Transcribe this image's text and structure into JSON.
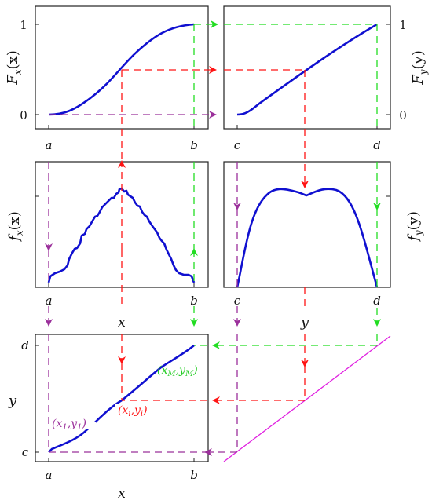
{
  "colors": {
    "curve": "#1010d0",
    "purple": "#9b309b",
    "red": "#ff1414",
    "green": "#22dd22",
    "magenta": "#e020e0",
    "frame": "#222222"
  },
  "panels": {
    "Fx": {
      "ylabel": "F_x(x)",
      "ylabel_main": "F",
      "ylabel_sub": "x",
      "ylabel_arg": "(x)",
      "yticks": [
        "1",
        "0"
      ],
      "xticks": [
        "a",
        "b"
      ]
    },
    "Fy": {
      "ylabel_main": "F",
      "ylabel_sub": "y",
      "ylabel_arg": "(y)",
      "yticks": [
        "1",
        "0"
      ],
      "xticks": [
        "c",
        "d"
      ]
    },
    "fx": {
      "ylabel_main": "f",
      "ylabel_sub": "x",
      "ylabel_arg": "(x)",
      "xticks": [
        "a",
        "x",
        "b"
      ]
    },
    "fy": {
      "ylabel_main": "f",
      "ylabel_sub": "y",
      "ylabel_arg": "(y)",
      "xticks": [
        "c",
        "y",
        "d"
      ]
    },
    "map": {
      "ylabel": "y",
      "xlabel": "x",
      "yticks": [
        "d",
        "c"
      ],
      "xticks": [
        "a",
        "b"
      ],
      "annotations": {
        "first": "(x₁,y₁)",
        "ith": "(xᵢ,yᵢ)",
        "last": "(x_M,y_M)",
        "first_main1": "(x",
        "first_sub1": "1",
        "first_mid": ",y",
        "first_sub2": "1",
        "first_end": ")",
        "ith_main1": "(x",
        "ith_sub1": "i",
        "ith_mid": ",y",
        "ith_sub2": "i",
        "ith_end": ")",
        "last_main1": "(x",
        "last_sub1": "M",
        "last_mid": ",y",
        "last_sub2": "M",
        "last_end": ")"
      }
    }
  }
}
